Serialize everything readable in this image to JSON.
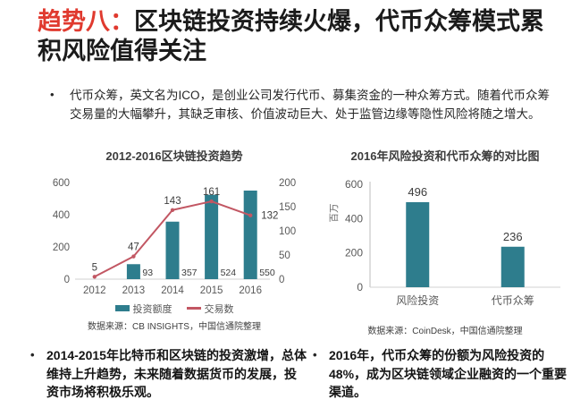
{
  "header": {
    "badge": "趋势八：",
    "title": "区块链投资持续火爆，代币众筹模式累积风险值得关注"
  },
  "intro": {
    "marker": "•",
    "text": "代币众筹，英文名为ICO，是创业公司发行代币、募集资金的一种众筹方式。随着代币众筹交易量的大幅攀升，其缺乏审核、价值波动巨大、处于监管边缘等隐性风险将随之增大。"
  },
  "chart_data": [
    {
      "type": "combo-bar-line",
      "title": "2012-2016区块链投资趋势",
      "categories": [
        "2012",
        "2013",
        "2014",
        "2015",
        "2016"
      ],
      "series": [
        {
          "name": "投资额度",
          "kind": "bar",
          "axis": "left",
          "color": "#2e7d8d",
          "values": [
            null,
            93,
            357,
            524,
            550
          ]
        },
        {
          "name": "交易数",
          "kind": "line",
          "axis": "right",
          "color": "#c25763",
          "values": [
            5,
            47,
            143,
            161,
            132
          ]
        }
      ],
      "left_axis": {
        "ticks": [
          0,
          200,
          400,
          600
        ],
        "max": 600
      },
      "right_axis": {
        "ticks": [
          0,
          50,
          100,
          150,
          200
        ],
        "max": 200
      },
      "grid": false,
      "legend_position": "bottom",
      "source": "数据来源：CB INSIGHTS，中国信通院整理"
    },
    {
      "type": "bar",
      "title": "2016年风险投资和代币众筹的对比图",
      "ylabel": "百万",
      "categories": [
        "风险投资",
        "代币众筹"
      ],
      "values": [
        496,
        236
      ],
      "yticks": [
        0,
        200,
        400,
        600
      ],
      "ylim": [
        0,
        600
      ],
      "bar_color": "#2e7d8d",
      "grid": false,
      "source": "数据来源：CoinDesk，中国信通院整理"
    }
  ],
  "notes": [
    {
      "marker": "•",
      "text": "2014-2015年比特币和区块链的投资激增，总体维持上升趋势，未来随着数据货币的发展，投资市场将积极乐观。"
    },
    {
      "marker": "•",
      "text": "2016年，代币众筹的份额为风险投资的48%，成为区块链领域企业融资的一个重要渠道。"
    }
  ],
  "colors": {
    "accent_red": "#e03a2f",
    "bar_teal": "#2e7d8d",
    "line_rose": "#c25763"
  }
}
